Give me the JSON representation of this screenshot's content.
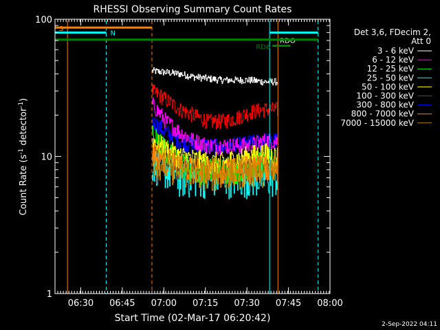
{
  "chart_data": {
    "type": "line",
    "title": "RHESSI Observing Summary Count Rates",
    "ylabel": "Count Rate (s",
    "ylabel_sup1": "-1",
    "ylabel_mid": " detector",
    "ylabel_sup2": "-1",
    "ylabel_end": ")",
    "xlabel": "Start Time (02-Mar-17 06:20:42)",
    "y_scale": "log",
    "ylim": [
      1,
      100
    ],
    "xlim_minutes": [
      0,
      99.3
    ],
    "y_ticks": [
      {
        "label": "1",
        "value": 1
      },
      {
        "label": "10",
        "value": 10
      },
      {
        "label": "100",
        "value": 100
      }
    ],
    "x_ticks": [
      {
        "label": "06:30",
        "minutes": 9.3
      },
      {
        "label": "06:45",
        "minutes": 24.3
      },
      {
        "label": "07:00",
        "minutes": 39.3
      },
      {
        "label": "07:15",
        "minutes": 54.3
      },
      {
        "label": "07:30",
        "minutes": 69.3
      },
      {
        "label": "07:45",
        "minutes": 84.3
      },
      {
        "label": "08:00",
        "minutes": 99.3
      }
    ],
    "legend_header": [
      "Det 3,6, FDecim 2,",
      "Att 0"
    ],
    "data_start_minutes": 35.0,
    "data_end_minutes": 80.5,
    "series": [
      {
        "name": "3 - 6 keV",
        "color": "#ffffff",
        "values": [
          42,
          41,
          40,
          38,
          37,
          36,
          36,
          36,
          35,
          35
        ]
      },
      {
        "name": "6 - 12 keV",
        "color": "#ff00ff",
        "values": [
          24,
          18,
          15,
          13,
          12,
          12,
          12,
          12,
          13,
          13
        ]
      },
      {
        "name": "12 - 25 keV",
        "color": "#00ff00",
        "values": [
          14,
          11,
          9,
          8,
          8,
          8,
          8,
          9,
          9,
          9
        ]
      },
      {
        "name": "25 - 50 keV",
        "color": "#00ffff",
        "values": [
          9,
          8,
          7,
          7,
          7,
          7,
          7,
          7,
          7,
          7
        ]
      },
      {
        "name": "50 - 100 keV",
        "color": "#ffff00",
        "values": [
          13,
          11,
          10,
          9.5,
          9,
          9,
          9.5,
          10,
          10.5,
          10
        ]
      },
      {
        "name": "100 - 300 keV",
        "color": "#ff0000",
        "values": [
          30,
          26,
          22,
          20,
          18,
          18,
          19,
          21,
          22,
          22
        ]
      },
      {
        "name": "300 - 800 keV",
        "color": "#0000ff",
        "values": [
          18,
          15,
          13,
          12,
          12,
          11.5,
          12,
          12.5,
          13,
          13
        ]
      },
      {
        "name": "800 - 7000 keV",
        "color": "#ff8000",
        "values": [
          11,
          9.5,
          8.5,
          8,
          8,
          8,
          8,
          8.5,
          8.5,
          8.5
        ]
      },
      {
        "name": "7000 - 15000 keV",
        "color": "#c08000",
        "values": [
          9.5,
          8.5,
          8,
          7.5,
          7.5,
          7.5,
          7.5,
          8,
          8,
          8
        ]
      }
    ],
    "flag_bars": [
      {
        "label": "S",
        "color": "#ff8000",
        "start": 0,
        "end": 35,
        "y": 87
      },
      {
        "label": "N",
        "color": "#00ffff",
        "start": 0,
        "end": 18.5,
        "y": 80
      },
      {
        "label": "RDO",
        "color": "#00ffff",
        "start": 77.5,
        "end": 95,
        "y": 80
      },
      {
        "label": "",
        "color": "#008000",
        "start": 0,
        "end": 95,
        "y": 71
      },
      {
        "label": "RD6",
        "color": "#008000",
        "start": 78.5,
        "end": 85,
        "y": 64
      }
    ],
    "vertical_lines": [
      {
        "color": "#ff8000",
        "minutes": 4.5,
        "style": "solid"
      },
      {
        "color": "#00ffff",
        "minutes": 18.5,
        "style": "dashed"
      },
      {
        "color": "#ff8000",
        "minutes": 35,
        "style": "dashed"
      },
      {
        "color": "#00ffff",
        "minutes": 77.5,
        "style": "solid"
      },
      {
        "color": "#ff8000",
        "minutes": 80.5,
        "style": "solid"
      },
      {
        "color": "#00ffff",
        "minutes": 95,
        "style": "dashed"
      }
    ]
  },
  "footer": {
    "date_stamp": "2-Sep-2022 04:11"
  }
}
